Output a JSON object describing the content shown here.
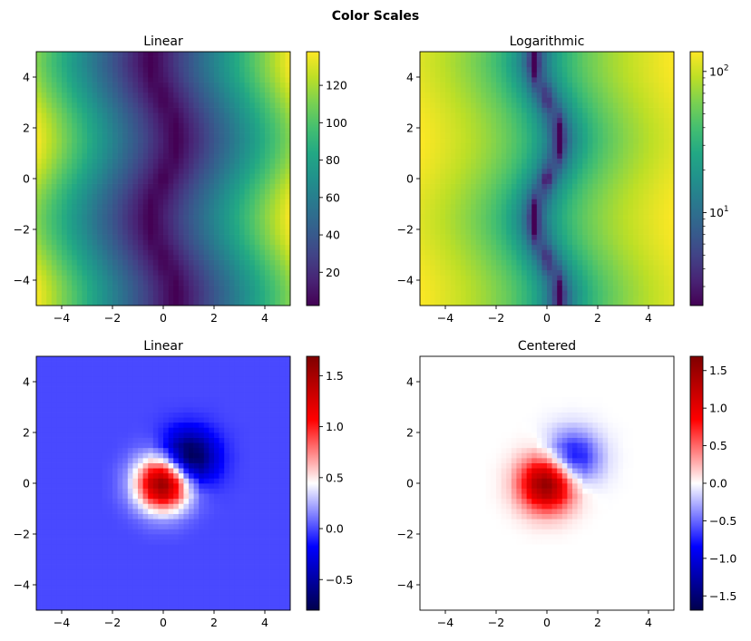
{
  "chart_data": {
    "title": "Color Scales",
    "datasets": {
      "wave": {
        "x": [
          -5,
          -4.5,
          -4,
          -3.5,
          -3,
          -2.5,
          -2,
          -1.5,
          -1,
          -0.5,
          0,
          0.5,
          1,
          1.5,
          2,
          2.5,
          3,
          3.5,
          4,
          4.5,
          5
        ],
        "y": [
          -5,
          -4.5,
          -4,
          -3.5,
          -3,
          -2.5,
          -2,
          -1.5,
          -1,
          -0.5,
          0,
          0.5,
          1,
          1.5,
          2,
          2.5,
          3,
          3.5,
          4,
          4.5,
          5
        ],
        "z": [
          [
            137,
            125,
            112,
            100,
            87,
            75,
            62,
            50,
            37,
            25,
            12,
            1,
            13,
            26,
            38,
            51,
            63,
            76,
            88,
            101,
            113
          ],
          [
            137,
            125,
            112,
            100,
            87,
            75,
            62,
            50,
            37,
            25,
            12,
            0,
            13,
            25,
            38,
            50,
            63,
            75,
            88,
            100,
            113
          ],
          [
            135,
            122,
            110,
            97,
            85,
            72,
            60,
            47,
            35,
            22,
            10,
            3,
            16,
            28,
            41,
            53,
            66,
            78,
            91,
            103,
            116
          ],
          [
            129,
            117,
            104,
            92,
            79,
            67,
            54,
            42,
            29,
            17,
            4,
            8,
            21,
            33,
            46,
            58,
            71,
            83,
            96,
            108,
            121
          ],
          [
            123,
            111,
            98,
            86,
            73,
            61,
            48,
            36,
            23,
            11,
            2,
            14,
            27,
            39,
            52,
            64,
            77,
            89,
            102,
            114,
            127
          ],
          [
            118,
            105,
            93,
            80,
            68,
            55,
            43,
            30,
            18,
            5,
            8,
            20,
            33,
            45,
            58,
            70,
            83,
            95,
            108,
            120,
            133
          ],
          [
            114,
            101,
            89,
            76,
            64,
            51,
            39,
            26,
            14,
            1,
            11,
            24,
            36,
            49,
            61,
            74,
            86,
            99,
            111,
            124,
            136
          ],
          [
            113,
            100,
            88,
            75,
            63,
            50,
            38,
            25,
            13,
            0,
            13,
            25,
            38,
            50,
            63,
            75,
            88,
            100,
            113,
            125,
            138
          ],
          [
            115,
            102,
            90,
            77,
            65,
            52,
            40,
            27,
            15,
            2,
            11,
            23,
            36,
            48,
            61,
            73,
            86,
            98,
            111,
            123,
            136
          ],
          [
            119,
            107,
            94,
            82,
            69,
            57,
            44,
            32,
            19,
            7,
            6,
            19,
            31,
            44,
            56,
            69,
            81,
            94,
            106,
            119,
            131
          ],
          [
            125,
            113,
            100,
            88,
            75,
            63,
            50,
            38,
            25,
            13,
            0,
            13,
            25,
            38,
            50,
            63,
            75,
            88,
            100,
            113,
            125
          ],
          [
            131,
            119,
            106,
            94,
            81,
            69,
            56,
            44,
            31,
            19,
            6,
            7,
            19,
            32,
            44,
            57,
            69,
            82,
            94,
            107,
            119
          ],
          [
            136,
            123,
            111,
            98,
            86,
            73,
            61,
            48,
            36,
            23,
            11,
            2,
            15,
            27,
            40,
            52,
            65,
            77,
            90,
            102,
            115
          ],
          [
            138,
            125,
            113,
            100,
            88,
            75,
            63,
            50,
            38,
            25,
            13,
            0,
            13,
            25,
            38,
            50,
            63,
            75,
            88,
            100,
            113
          ],
          [
            136,
            124,
            111,
            99,
            86,
            74,
            61,
            49,
            36,
            24,
            11,
            1,
            14,
            26,
            39,
            51,
            64,
            76,
            89,
            101,
            114
          ],
          [
            133,
            120,
            108,
            95,
            83,
            70,
            58,
            45,
            33,
            20,
            8,
            5,
            18,
            30,
            43,
            55,
            68,
            80,
            93,
            105,
            118
          ],
          [
            127,
            114,
            102,
            89,
            77,
            64,
            52,
            39,
            27,
            14,
            2,
            11,
            23,
            36,
            48,
            61,
            73,
            86,
            98,
            111,
            123
          ],
          [
            121,
            108,
            96,
            83,
            71,
            58,
            46,
            33,
            21,
            8,
            4,
            17,
            29,
            42,
            54,
            67,
            79,
            92,
            104,
            117,
            129
          ],
          [
            116,
            103,
            91,
            78,
            66,
            53,
            41,
            28,
            16,
            3,
            10,
            22,
            35,
            47,
            60,
            72,
            85,
            97,
            110,
            122,
            135
          ],
          [
            113,
            100,
            88,
            75,
            63,
            50,
            38,
            25,
            13,
            0,
            12,
            25,
            37,
            50,
            62,
            75,
            87,
            100,
            112,
            125,
            137
          ],
          [
            113,
            101,
            88,
            76,
            63,
            51,
            38,
            26,
            13,
            1,
            12,
            25,
            37,
            50,
            62,
            75,
            87,
            100,
            112,
            125,
            137
          ]
        ]
      },
      "dipole": {
        "x": [
          -5,
          -4.5,
          -4,
          -3.5,
          -3,
          -2.5,
          -2,
          -1.5,
          -1,
          -0.5,
          0,
          0.5,
          1,
          1.5,
          2,
          2.5,
          3,
          3.5,
          4,
          4.5,
          5
        ],
        "y": [
          -5,
          -4.5,
          -4,
          -3.5,
          -3,
          -2.5,
          -2,
          -1.5,
          -1,
          -0.5,
          0,
          0.5,
          1,
          1.5,
          2,
          2.5,
          3,
          3.5,
          4,
          4.5,
          5
        ],
        "z": [
          [
            0,
            0,
            0,
            0,
            0,
            0,
            0,
            0,
            0,
            0,
            0,
            0,
            0,
            0,
            0,
            0,
            0,
            0,
            0,
            0,
            0
          ],
          [
            0,
            0,
            0,
            0,
            0,
            0,
            0,
            0,
            0,
            0,
            0,
            0,
            0,
            0,
            0,
            0,
            0,
            0,
            0,
            0,
            0
          ],
          [
            0,
            0,
            0,
            0,
            0,
            0,
            0,
            0,
            0,
            0,
            0,
            0,
            0,
            0,
            0,
            0,
            0,
            0,
            0,
            0,
            0
          ],
          [
            0,
            0,
            0,
            0,
            0,
            0,
            0,
            0,
            0,
            0,
            0,
            0,
            0,
            0,
            0,
            0,
            0,
            0,
            0,
            0,
            0
          ],
          [
            0,
            0,
            0,
            0,
            0,
            0,
            0,
            0,
            0,
            0,
            0,
            0,
            0,
            0,
            0,
            0,
            0,
            0,
            0,
            0,
            0
          ],
          [
            0,
            0,
            0,
            0,
            0,
            0,
            0,
            0,
            0,
            0,
            0,
            0,
            0,
            0,
            0,
            0,
            0,
            0,
            0,
            0,
            0
          ],
          [
            0,
            0,
            0,
            0,
            0,
            0,
            0,
            0,
            0.01,
            0.03,
            0.03,
            0.03,
            0.01,
            0,
            0,
            0,
            0,
            0,
            0,
            0,
            0
          ],
          [
            0,
            0,
            0,
            0,
            0,
            0,
            0,
            0.02,
            0.07,
            0.15,
            0.19,
            0.15,
            0.07,
            0.02,
            0,
            0,
            0,
            0,
            0,
            0,
            0
          ],
          [
            0,
            0,
            0,
            0,
            0,
            0,
            0.01,
            0.07,
            0.24,
            0.51,
            0.66,
            0.5,
            0.23,
            0.06,
            0.01,
            0,
            0,
            0,
            0,
            0,
            0
          ],
          [
            0,
            0,
            0,
            0,
            0,
            0,
            0.03,
            0.15,
            0.51,
            1.08,
            1.36,
            1.01,
            0.41,
            0.07,
            -0.01,
            -0.01,
            0,
            0,
            0,
            0,
            0
          ],
          [
            0,
            0,
            0,
            0,
            0,
            0,
            0.03,
            0.19,
            0.66,
            1.36,
            1.66,
            1.12,
            0.29,
            -0.1,
            -0.1,
            -0.04,
            -0.01,
            0,
            0,
            0,
            0
          ],
          [
            0,
            0,
            0,
            0,
            0,
            0,
            0.03,
            0.15,
            0.5,
            1.01,
            1.12,
            0.49,
            -0.26,
            -0.46,
            -0.26,
            -0.08,
            -0.01,
            0,
            0,
            0,
            0
          ],
          [
            0,
            0,
            0,
            0,
            0,
            0,
            0.01,
            0.07,
            0.23,
            0.41,
            0.29,
            -0.26,
            -0.76,
            -0.71,
            -0.36,
            -0.1,
            -0.02,
            0,
            0,
            0,
            0
          ],
          [
            0,
            0,
            0,
            0,
            0,
            0,
            0,
            0.02,
            0.06,
            0.07,
            -0.1,
            -0.46,
            -0.71,
            -0.59,
            -0.28,
            -0.08,
            -0.01,
            0,
            0,
            0,
            0
          ],
          [
            0,
            0,
            0,
            0,
            0,
            0,
            0,
            0,
            0.01,
            -0.01,
            -0.1,
            -0.26,
            -0.36,
            -0.28,
            -0.13,
            -0.04,
            -0.01,
            0,
            0,
            0,
            0
          ],
          [
            0,
            0,
            0,
            0,
            0,
            0,
            0,
            0,
            0,
            -0.01,
            -0.04,
            -0.08,
            -0.1,
            -0.08,
            -0.04,
            -0.01,
            0,
            0,
            0,
            0,
            0
          ],
          [
            0,
            0,
            0,
            0,
            0,
            0,
            0,
            0,
            0,
            0,
            -0.01,
            -0.01,
            -0.02,
            -0.01,
            -0.01,
            0,
            0,
            0,
            0,
            0,
            0
          ],
          [
            0,
            0,
            0,
            0,
            0,
            0,
            0,
            0,
            0,
            0,
            0,
            0,
            0,
            0,
            0,
            0,
            0,
            0,
            0,
            0,
            0
          ],
          [
            0,
            0,
            0,
            0,
            0,
            0,
            0,
            0,
            0,
            0,
            0,
            0,
            0,
            0,
            0,
            0,
            0,
            0,
            0,
            0,
            0
          ],
          [
            0,
            0,
            0,
            0,
            0,
            0,
            0,
            0,
            0,
            0,
            0,
            0,
            0,
            0,
            0,
            0,
            0,
            0,
            0,
            0,
            0
          ],
          [
            0,
            0,
            0,
            0,
            0,
            0,
            0,
            0,
            0,
            0,
            0,
            0,
            0,
            0,
            0,
            0,
            0,
            0,
            0,
            0,
            0
          ]
        ]
      }
    },
    "axes": {
      "xlim": [
        -5,
        5
      ],
      "ylim": [
        -5,
        5
      ],
      "ticks": [
        {
          "value": -4,
          "label": "−4"
        },
        {
          "value": -2,
          "label": "−2"
        },
        {
          "value": 0,
          "label": "0"
        },
        {
          "value": 2,
          "label": "2"
        },
        {
          "value": 4,
          "label": "4"
        }
      ]
    },
    "panels": [
      {
        "type": "heatmap",
        "title": "Linear",
        "dataset": "wave",
        "colormap": "viridis",
        "norm": "linear",
        "clim": [
          2.2,
          138
        ],
        "colorbar_ticks": [
          {
            "value": 20,
            "label": "20"
          },
          {
            "value": 40,
            "label": "40"
          },
          {
            "value": 60,
            "label": "60"
          },
          {
            "value": 80,
            "label": "80"
          },
          {
            "value": 100,
            "label": "100"
          },
          {
            "value": 120,
            "label": "120"
          }
        ]
      },
      {
        "type": "heatmap",
        "title": "Logarithmic",
        "dataset": "wave",
        "colormap": "viridis",
        "norm": "log",
        "clim": [
          2.2,
          138
        ],
        "colorbar_ticks": [
          {
            "value": 10,
            "label": "10",
            "exp": "1"
          },
          {
            "value": 100,
            "label": "10",
            "exp": "2"
          }
        ],
        "colorbar_minor_ticks": [
          3,
          4,
          5,
          6,
          7,
          8,
          9,
          20,
          30,
          40,
          50,
          60,
          70,
          80,
          90
        ]
      },
      {
        "type": "heatmap",
        "title": "Linear",
        "dataset": "dipole",
        "colormap": "seismic",
        "norm": "linear",
        "clim": [
          -0.8,
          1.69
        ],
        "colorbar_ticks": [
          {
            "value": -0.5,
            "label": "−0.5"
          },
          {
            "value": 0,
            "label": "0.0"
          },
          {
            "value": 0.5,
            "label": "0.5"
          },
          {
            "value": 1,
            "label": "1.0"
          },
          {
            "value": 1.5,
            "label": "1.5"
          }
        ]
      },
      {
        "type": "heatmap",
        "title": "Centered",
        "dataset": "dipole",
        "colormap": "seismic",
        "norm": "centered",
        "clim": [
          -1.69,
          1.69
        ],
        "colorbar_ticks": [
          {
            "value": -1.5,
            "label": "−1.5"
          },
          {
            "value": -1,
            "label": "−1.0"
          },
          {
            "value": -0.5,
            "label": "−0.5"
          },
          {
            "value": 0,
            "label": "0.0"
          },
          {
            "value": 0.5,
            "label": "0.5"
          },
          {
            "value": 1,
            "label": "1.0"
          },
          {
            "value": 1.5,
            "label": "1.5"
          }
        ]
      }
    ]
  }
}
